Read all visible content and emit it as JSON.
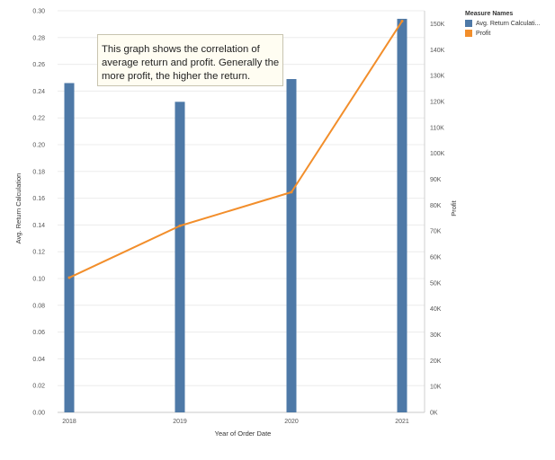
{
  "chart_data": {
    "type": "bar",
    "categories": [
      "2018",
      "2019",
      "2020",
      "2021"
    ],
    "xlabel": "Year of Order Date",
    "series": [
      {
        "name": "Avg. Return Calculati...",
        "type": "bar",
        "axis": "left",
        "color": "#4e79a7",
        "values": [
          0.246,
          0.232,
          0.249,
          0.294
        ]
      },
      {
        "name": "Profit",
        "type": "line",
        "axis": "right",
        "color": "#f28e2b",
        "values": [
          52000,
          72000,
          85000,
          151000
        ]
      }
    ],
    "y_left": {
      "label": "Avg. Return Calculation",
      "lim": [
        0,
        0.3
      ],
      "ticks": [
        "0.00",
        "0.02",
        "0.04",
        "0.06",
        "0.08",
        "0.10",
        "0.12",
        "0.14",
        "0.16",
        "0.18",
        "0.20",
        "0.22",
        "0.24",
        "0.26",
        "0.28",
        "0.30"
      ]
    },
    "y_right": {
      "label": "Profit",
      "lim": [
        0,
        155000
      ],
      "tick_values": [
        0,
        10000,
        20000,
        30000,
        40000,
        50000,
        60000,
        70000,
        80000,
        90000,
        100000,
        110000,
        120000,
        130000,
        140000,
        150000
      ],
      "ticks": [
        "0K",
        "10K",
        "20K",
        "30K",
        "40K",
        "50K",
        "60K",
        "70K",
        "80K",
        "90K",
        "100K",
        "110K",
        "120K",
        "130K",
        "140K",
        "150K"
      ]
    },
    "grid": true,
    "legend": {
      "title": "Measure Names",
      "placement": "right"
    },
    "annotation": "This graph shows the correlation of average return and profit. Generally the more profit, the higher the return."
  }
}
